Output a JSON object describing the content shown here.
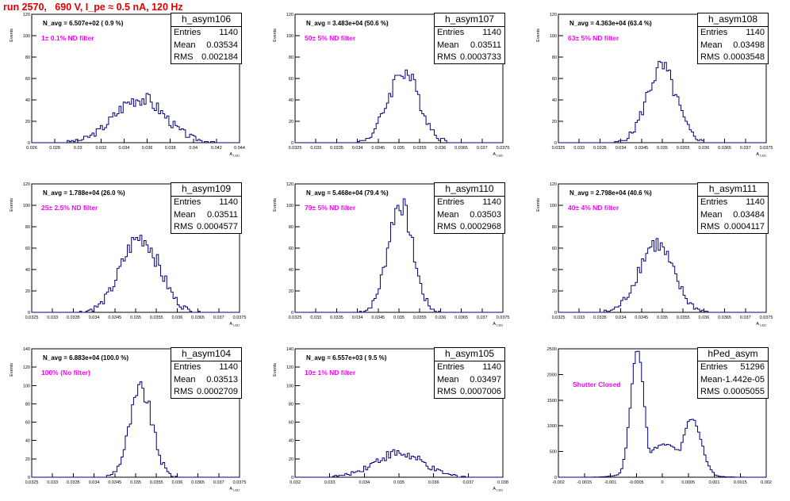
{
  "page": {
    "title": "run 2570,   690 V, I_pe ≈ 0.5 nA, 120 Hz"
  },
  "stat_labels": {
    "entries": "Entries",
    "mean": "Mean",
    "rms": "RMS"
  },
  "chart_data": [
    {
      "type": "bar",
      "histogram": "h_asym106",
      "title": "N_avg = 6.507e+02 ( 0.9 %)",
      "annotation": "1± 0.1% ND filter",
      "ylabel": "Events",
      "xlabel": "A_LED",
      "xlim": [
        0.026,
        0.044
      ],
      "ylim": [
        0,
        120
      ],
      "xticks": [
        "0.026",
        "0.028",
        "0.03",
        "0.032",
        "0.034",
        "0.036",
        "0.038",
        "0.04",
        "0.042",
        "0.044"
      ],
      "yticks": [
        "0",
        "20",
        "40",
        "60",
        "80",
        "100",
        "120"
      ],
      "stats": {
        "entries": "1140",
        "mean": "0.03534",
        "rms": "0.002184"
      },
      "mean": 0.03534,
      "rms": 0.002184,
      "peak": 42,
      "entries": 1140
    },
    {
      "type": "bar",
      "histogram": "h_asym107",
      "title": "N_avg = 3.483e+04 (50.6 %)",
      "annotation": "50± 5% ND filter",
      "ylabel": "Events",
      "xlabel": "A_LED",
      "xlim": [
        0.0325,
        0.0375
      ],
      "ylim": [
        0,
        120
      ],
      "xticks": [
        "0.0325",
        "0.033",
        "0.0335",
        "0.034",
        "0.0345",
        "0.035",
        "0.0355",
        "0.036",
        "0.0365",
        "0.037",
        "0.0375"
      ],
      "yticks": [
        "0",
        "20",
        "40",
        "60",
        "80",
        "100",
        "120"
      ],
      "stats": {
        "entries": "1140",
        "mean": "0.03511",
        "rms": "0.0003733"
      },
      "mean": 0.03511,
      "rms": 0.0003733,
      "peak": 67,
      "entries": 1140
    },
    {
      "type": "bar",
      "histogram": "h_asym108",
      "title": "N_avg = 4.363e+04 (63.4 %)",
      "annotation": "63± 5% ND filter",
      "ylabel": "Events",
      "xlabel": "A_LED",
      "xlim": [
        0.0325,
        0.0375
      ],
      "ylim": [
        0,
        120
      ],
      "xticks": [
        "0.0325",
        "0.033",
        "0.0335",
        "0.034",
        "0.0345",
        "0.035",
        "0.0355",
        "0.036",
        "0.0365",
        "0.037",
        "0.0375"
      ],
      "yticks": [
        "0",
        "20",
        "40",
        "60",
        "80",
        "100",
        "120"
      ],
      "stats": {
        "entries": "1140",
        "mean": "0.03498",
        "rms": "0.0003548"
      },
      "mean": 0.03498,
      "rms": 0.0003548,
      "peak": 70,
      "entries": 1140
    },
    {
      "type": "bar",
      "histogram": "h_asym109",
      "title": "N_avg = 1.788e+04 (26.0 %)",
      "annotation": "25± 2.5% ND filter",
      "ylabel": "Events",
      "xlabel": "A_LED",
      "xlim": [
        0.0325,
        0.0375
      ],
      "ylim": [
        0,
        120
      ],
      "xticks": [
        "0.0325",
        "0.033",
        "0.0335",
        "0.034",
        "0.0345",
        "0.035",
        "0.0355",
        "0.036",
        "0.0365",
        "0.037",
        "0.0375"
      ],
      "yticks": [
        "0",
        "20",
        "40",
        "60",
        "80",
        "100",
        "120"
      ],
      "stats": {
        "entries": "1140",
        "mean": "0.03511",
        "rms": "0.0004577"
      },
      "mean": 0.03511,
      "rms": 0.0004577,
      "peak": 70,
      "entries": 1140
    },
    {
      "type": "bar",
      "histogram": "h_asym110",
      "title": "N_avg = 5.468e+04 (79.4 %)",
      "annotation": "79± 5% ND filter",
      "ylabel": "Events",
      "xlabel": "A_LED",
      "xlim": [
        0.0325,
        0.0375
      ],
      "ylim": [
        0,
        120
      ],
      "xticks": [
        "0.0325",
        "0.033",
        "0.0335",
        "0.034",
        "0.0345",
        "0.035",
        "0.0355",
        "0.036",
        "0.0365",
        "0.037",
        "0.0375"
      ],
      "yticks": [
        "0",
        "20",
        "40",
        "60",
        "80",
        "100",
        "120"
      ],
      "stats": {
        "entries": "1140",
        "mean": "0.03503",
        "rms": "0.0002968"
      },
      "mean": 0.03503,
      "rms": 0.0002968,
      "peak": 102,
      "entries": 1140
    },
    {
      "type": "bar",
      "histogram": "h_asym111",
      "title": "N_avg = 2.798e+04 (40.6 %)",
      "annotation": "40± 4% ND filter",
      "ylabel": "Events",
      "xlabel": "A_LED",
      "xlim": [
        0.0325,
        0.0375
      ],
      "ylim": [
        0,
        120
      ],
      "xticks": [
        "0.0325",
        "0.033",
        "0.0335",
        "0.034",
        "0.0345",
        "0.035",
        "0.0355",
        "0.036",
        "0.0365",
        "0.037",
        "0.0375"
      ],
      "yticks": [
        "0",
        "20",
        "40",
        "60",
        "80",
        "100",
        "120"
      ],
      "stats": {
        "entries": "1140",
        "mean": "0.03484",
        "rms": "0.0004117"
      },
      "mean": 0.03484,
      "rms": 0.0004117,
      "peak": 64,
      "entries": 1140
    },
    {
      "type": "bar",
      "histogram": "h_asym104",
      "title": "N_avg = 6.883e+04 (100.0 %)",
      "annotation": "100% (No filter)",
      "ylabel": "Events",
      "xlabel": "A_LED",
      "xlim": [
        0.0325,
        0.0375
      ],
      "ylim": [
        0,
        140
      ],
      "xticks": [
        "0.0325",
        "0.033",
        "0.0335",
        "0.034",
        "0.0345",
        "0.035",
        "0.0355",
        "0.036",
        "0.0365",
        "0.037",
        "0.0375"
      ],
      "yticks": [
        "0",
        "20",
        "40",
        "60",
        "80",
        "100",
        "120",
        "140"
      ],
      "stats": {
        "entries": "1140",
        "mean": "0.03513",
        "rms": "0.0002709"
      },
      "mean": 0.03513,
      "rms": 0.0002709,
      "peak": 95,
      "entries": 1140
    },
    {
      "type": "bar",
      "histogram": "h_asym105",
      "title": "N_avg = 6.557e+03 ( 9.5 %)",
      "annotation": "10± 1% ND filter",
      "ylabel": "Events",
      "xlabel": "A_LED",
      "xlim": [
        0.032,
        0.038
      ],
      "ylim": [
        0,
        140
      ],
      "xticks": [
        "0.032",
        "0.033",
        "0.034",
        "0.035",
        "0.036",
        "0.037",
        "0.038"
      ],
      "yticks": [
        "0",
        "20",
        "40",
        "60",
        "80",
        "100",
        "120",
        "140"
      ],
      "stats": {
        "entries": "1140",
        "mean": "0.03497",
        "rms": "0.0007006"
      },
      "mean": 0.03497,
      "rms": 0.0007006,
      "peak": 26,
      "entries": 1140
    },
    {
      "type": "bar",
      "histogram": "hPed_asym",
      "title": "",
      "annotation": "Shutter Closed",
      "ylabel": "",
      "xlabel": "",
      "xlim": [
        -0.002,
        0.002
      ],
      "ylim": [
        0,
        2500
      ],
      "xticks": [
        "-0.002",
        "-0.0015",
        "-0.001",
        "-0.0005",
        "0",
        "0.0005",
        "0.001",
        "0.0015",
        "0.002"
      ],
      "yticks": [
        "0",
        "500",
        "1000",
        "1500",
        "2000",
        "2500"
      ],
      "stats": {
        "entries": "51296",
        "mean": "-1.442e-05",
        "rms": "0.0005055"
      },
      "bimodal": [
        {
          "mean": -0.00048,
          "sigma": 0.00013,
          "peak": 2470
        },
        {
          "mean": 0.00057,
          "sigma": 0.00018,
          "peak": 1150
        }
      ],
      "floor": 700
    }
  ]
}
